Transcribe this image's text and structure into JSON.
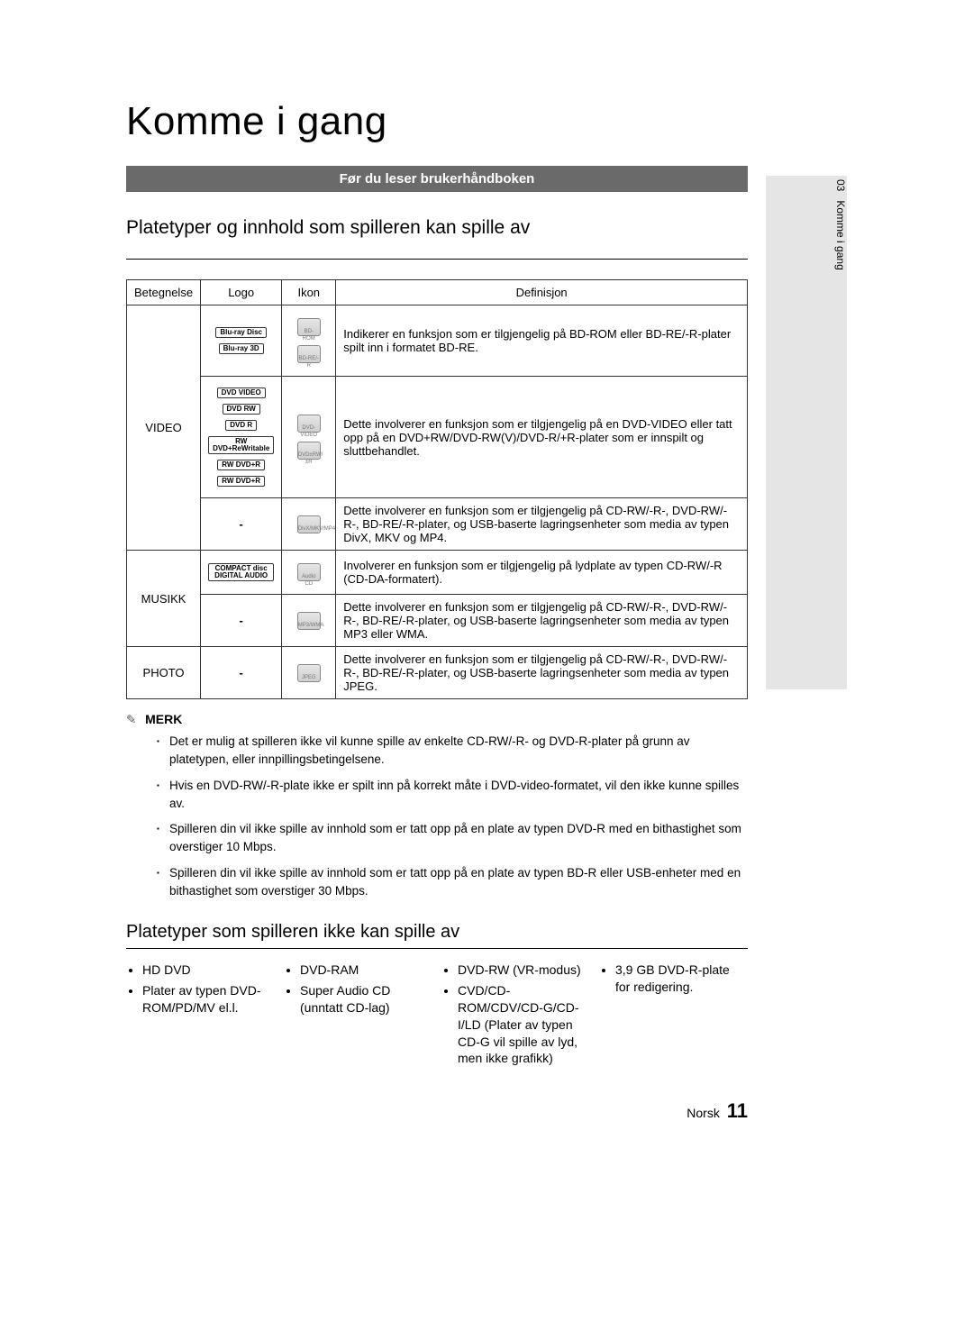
{
  "colors": {
    "banner_bg": "#6a6a6a",
    "banner_text": "#ffffff",
    "sidetab_bg": "#e5e5e5",
    "border": "#333333",
    "page_bg": "#ffffff"
  },
  "side_tab": {
    "chapter_num": "03",
    "chapter_title": "Komme i gang"
  },
  "title": "Komme i gang",
  "banner": "Før du leser brukerhåndboken",
  "section1_title": "Platetyper og innhold som spilleren kan spille av",
  "table": {
    "headers": {
      "bet": "Betegnelse",
      "logo": "Logo",
      "ikon": "Ikon",
      "def": "Definisjon"
    },
    "rows": [
      {
        "bet": "VIDEO",
        "rowspan": 3,
        "sub": [
          {
            "logos": [
              "Blu-ray Disc",
              "Blu-ray 3D"
            ],
            "ikons": [
              "BD-ROM",
              "BD-RE/-R"
            ],
            "def": "Indikerer en funksjon som er tilgjengelig på BD-ROM eller BD-RE/-R-plater spilt inn i formatet BD-RE."
          },
          {
            "logos": [
              "DVD VIDEO",
              "DVD RW",
              "DVD R",
              "RW DVD+ReWritable",
              "RW DVD+R",
              "RW DVD+R"
            ],
            "ikons": [
              "DVD-VIDEO",
              "DVD±RW/±R"
            ],
            "def": "Dette involverer en funksjon som er tilgjengelig på en DVD-VIDEO eller tatt opp på en DVD+RW/DVD-RW(V)/DVD-R/+R-plater som er innspilt og sluttbehandlet."
          },
          {
            "logos": [
              "-"
            ],
            "ikons": [
              "DivX/MKV/MP4"
            ],
            "def": "Dette involverer en funksjon som er tilgjengelig på CD-RW/-R-, DVD-RW/-R-, BD-RE/-R-plater, og USB-baserte lagringsenheter som media av typen DivX, MKV og MP4."
          }
        ]
      },
      {
        "bet": "MUSIKK",
        "rowspan": 2,
        "sub": [
          {
            "logos": [
              "COMPACT disc DIGITAL AUDIO"
            ],
            "ikons": [
              "Audio CD"
            ],
            "def": "Involverer en funksjon som er tilgjengelig på lydplate av typen CD-RW/-R (CD-DA-formatert)."
          },
          {
            "logos": [
              "-"
            ],
            "ikons": [
              "MP3/WMA"
            ],
            "def": "Dette involverer en funksjon som er tilgjengelig på CD-RW/-R-, DVD-RW/-R-, BD-RE/-R-plater, og USB-baserte lagringsenheter som media av typen MP3 eller WMA."
          }
        ]
      },
      {
        "bet": "PHOTO",
        "rowspan": 1,
        "sub": [
          {
            "logos": [
              "-"
            ],
            "ikons": [
              "JPEG"
            ],
            "def": "Dette involverer en funksjon som er tilgjengelig på CD-RW/-R-, DVD-RW/-R-, BD-RE/-R-plater, og USB-baserte lagringsenheter som media av typen JPEG."
          }
        ]
      }
    ]
  },
  "note_label": "MERK",
  "notes": [
    "Det er mulig at spilleren ikke vil kunne spille av enkelte CD-RW/-R- og DVD-R-plater på grunn av platetypen, eller innpillingsbetingelsene.",
    "Hvis en DVD-RW/-R-plate ikke er spilt inn på korrekt måte i DVD-video-formatet, vil den ikke kunne spilles av.",
    "Spilleren din vil ikke spille av innhold som er tatt opp på en plate av typen DVD-R med en bithastighet som overstiger 10 Mbps.",
    "Spilleren din vil ikke spille av innhold som er tatt opp på en plate av typen BD-R eller USB-enheter med en bithastighet som overstiger 30 Mbps."
  ],
  "section2_title": "Platetyper som spilleren ikke kan spille av",
  "unplayable_cols": [
    [
      "HD DVD",
      "Plater av typen DVD-ROM/PD/MV el.l."
    ],
    [
      "DVD-RAM",
      "Super Audio CD (unntatt CD-lag)"
    ],
    [
      "DVD-RW (VR-modus)",
      "CVD/CD-ROM/CDV/CD-G/CD-I/LD (Plater av typen CD-G vil spille av lyd, men ikke grafikk)"
    ],
    [
      "3,9 GB DVD-R-plate for redigering."
    ]
  ],
  "footer": {
    "lang": "Norsk",
    "page": "11"
  }
}
